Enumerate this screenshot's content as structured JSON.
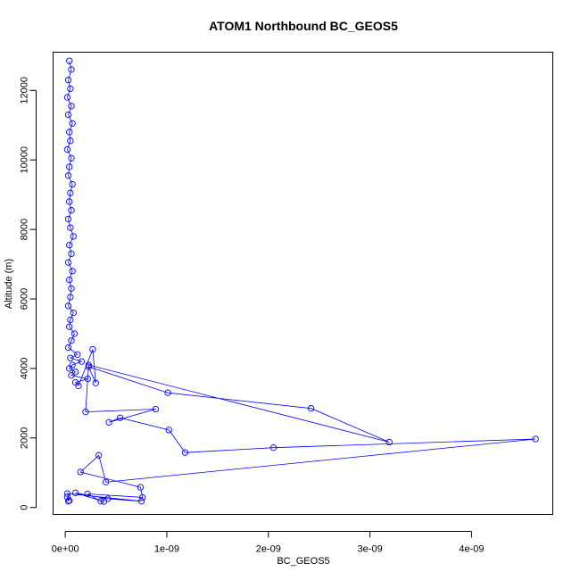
{
  "chart_data": {
    "type": "line",
    "title": "ATOM1 Northbound BC_GEOS5",
    "xlabel": "BC_GEOS5",
    "ylabel": "Altitude (m)",
    "xlim": [
      -1.2e-10,
      4.8e-09
    ],
    "ylim": [
      -200,
      13100
    ],
    "x_ticks": [
      0,
      1e-09,
      2e-09,
      3e-09,
      4e-09
    ],
    "x_tick_labels": [
      "0e+00",
      "1e-09",
      "2e-09",
      "3e-09",
      "4e-09"
    ],
    "y_ticks": [
      0,
      2000,
      4000,
      6000,
      8000,
      10000,
      12000
    ],
    "y_tick_labels": [
      "0",
      "2000",
      "4000",
      "6000",
      "8000",
      "10000",
      "12000"
    ],
    "grid": false,
    "style": {
      "color": "#0000ff",
      "marker": "open-circle"
    },
    "series": [
      {
        "x": [
          4e-11,
          6e-11,
          3e-11,
          5e-11,
          2e-11,
          6e-11,
          3e-11,
          7e-11,
          4e-11,
          5e-11,
          2e-11,
          6e-11,
          4e-11,
          3e-11,
          7e-11,
          5e-11,
          4e-11,
          6e-11,
          3e-11,
          5e-11,
          8e-11,
          4e-11,
          6e-11,
          3e-11,
          7e-11,
          4e-11,
          6e-11,
          5e-11,
          3e-11,
          8e-11,
          5e-11,
          4e-11,
          9e-11,
          6e-11,
          3e-11,
          1.2e-10,
          5e-11,
          1.6e-10,
          7e-11,
          4e-11,
          1e-10,
          6e-11,
          2.2e-10,
          1e-10,
          1.3e-10,
          2.7e-10,
          3e-10,
          2.3e-10,
          1.01e-09,
          2.42e-09,
          3.19e-09,
          2.3e-10,
          2e-10,
          8.9e-10,
          4.3e-10,
          5.4e-10,
          1.02e-09,
          1.18e-09,
          2.05e-09,
          4.63e-09,
          4e-10,
          3.3e-10,
          1.5e-10,
          7.4e-10,
          7.6e-10,
          2.2e-10,
          3.5e-10,
          3.8e-10,
          1e-10,
          4.2e-10,
          7.5e-10,
          2e-11,
          4e-11,
          2e-11,
          3e-11
        ],
        "y": [
          12850,
          12600,
          12300,
          12050,
          11800,
          11550,
          11300,
          11050,
          10800,
          10550,
          10300,
          10050,
          9800,
          9550,
          9300,
          9050,
          8800,
          8550,
          8300,
          8050,
          7800,
          7550,
          7300,
          7050,
          6800,
          6550,
          6300,
          6050,
          5800,
          5600,
          5400,
          5200,
          5000,
          4800,
          4600,
          4400,
          4300,
          4200,
          4100,
          4000,
          3900,
          3800,
          3700,
          3600,
          3500,
          4550,
          3580,
          4050,
          3300,
          2850,
          1880,
          4100,
          2750,
          2830,
          2450,
          2580,
          2230,
          1580,
          1720,
          1970,
          730,
          1500,
          1020,
          580,
          290,
          390,
          180,
          170,
          420,
          250,
          180,
          400,
          200,
          300,
          180
        ]
      }
    ]
  }
}
